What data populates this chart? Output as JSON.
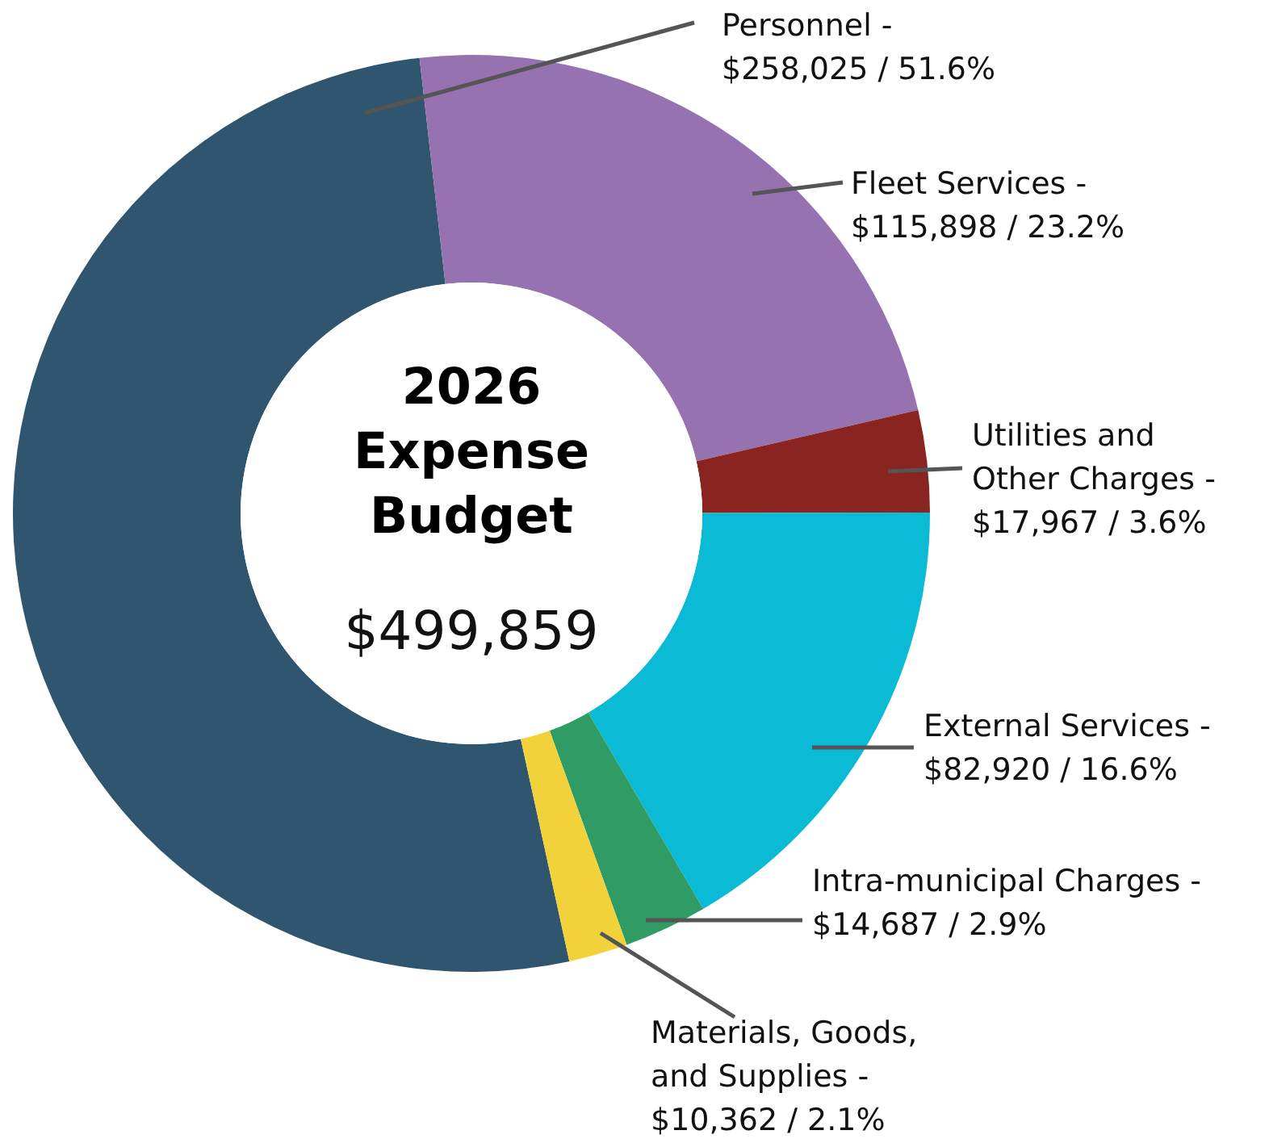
{
  "chart_data": {
    "type": "donut",
    "title": "2026 Expense Budget",
    "subtitle": "$499,859",
    "categories": [
      "Personnel -",
      "Fleet Services -",
      "Utilities and Other Charges -",
      "External Services -",
      "Intra-municipal Charges -",
      "Materials, Goods, and Supplies -"
    ],
    "values": [
      258025,
      115898,
      17967,
      82920,
      14687,
      10362
    ],
    "colors": [
      "#2f566e",
      "#9672b0",
      "#8a2420",
      "#0bbad5",
      "#2e9c64",
      "#f1d23a"
    ],
    "value_labels": [
      "$258,025 / 51.6%",
      "$115,898 / 23.2%",
      "$17,967 / 3.6%",
      "$82,920 / 16.6%",
      "$14,687 / 2.9%",
      "$10,362 / 2.1%"
    ]
  }
}
